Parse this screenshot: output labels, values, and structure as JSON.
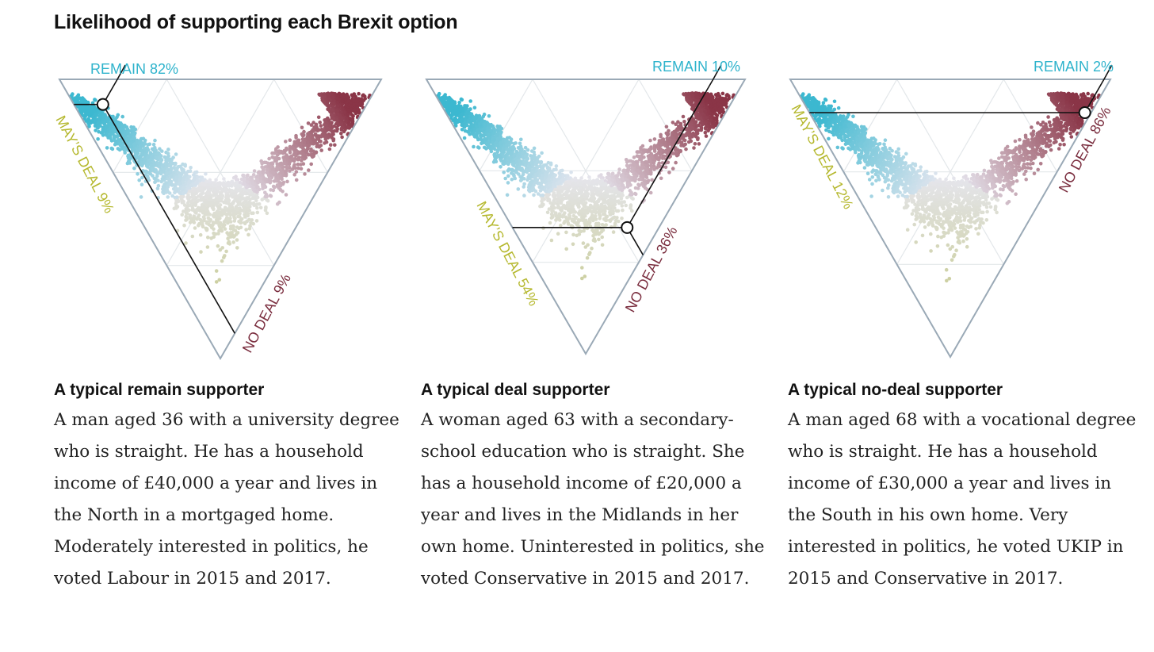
{
  "title": "Likelihood of supporting each Brexit option",
  "colors": {
    "remain": "#2eb3cc",
    "deal": "#b5b82e",
    "nodeal": "#7a2d3e",
    "neutral": "#e9e6ee",
    "frame": "#9aa9b6",
    "grid": "#e3e7ea"
  },
  "chart_data": [
    {
      "type": "scatter",
      "subtype": "ternary",
      "axes": [
        "Remain",
        "May's deal",
        "No deal"
      ],
      "marker": {
        "remain": 82,
        "deal": 9,
        "nodeal": 9
      },
      "labels": {
        "remain": "REMAIN 82%",
        "deal": "MAY’S DEAL 9%",
        "nodeal": "NO DEAL 9%"
      },
      "caption_title": "A typical remain supporter",
      "caption": "A man aged 36 with a university degree who is straight. He has a household income of £40,000 a year and lives in the North in a mortgaged home. Moderately interested in politics, he voted Labour in 2015 and 2017."
    },
    {
      "type": "scatter",
      "subtype": "ternary",
      "axes": [
        "Remain",
        "May's deal",
        "No deal"
      ],
      "marker": {
        "remain": 10,
        "deal": 54,
        "nodeal": 36
      },
      "labels": {
        "remain": "REMAIN 10%",
        "deal": "MAY’S DEAL 54%",
        "nodeal": "NO DEAL 36%"
      },
      "caption_title": "A typical deal supporter",
      "caption": "A woman aged 63 with a secondary-school education who is straight. She has a household income of £20,000 a year and lives in the Midlands in her own home. Uninterested in politics, she voted Conservative in 2015 and 2017."
    },
    {
      "type": "scatter",
      "subtype": "ternary",
      "axes": [
        "Remain",
        "May's deal",
        "No deal"
      ],
      "marker": {
        "remain": 2,
        "deal": 12,
        "nodeal": 86
      },
      "labels": {
        "remain": "REMAIN 2%",
        "deal": "MAY’S DEAL 12%",
        "nodeal": "NO DEAL 86%"
      },
      "caption_title": "A typical no-deal supporter",
      "caption": "A man aged 68 with a vocational degree who is straight. He has a household income of £30,000 a year and lives in the South in his own home. Very interested in politics, he voted UKIP in 2015 and Conservative in 2017."
    }
  ]
}
